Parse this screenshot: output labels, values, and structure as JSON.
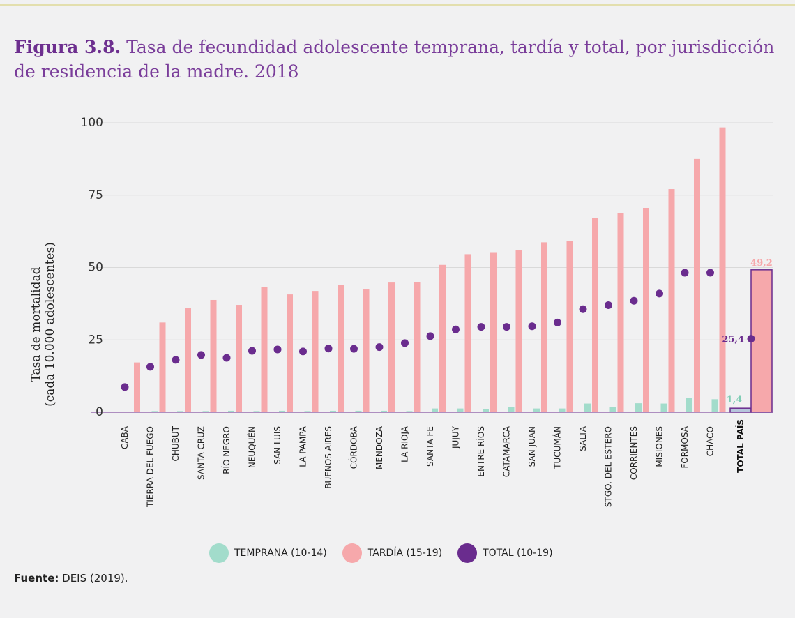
{
  "figure": {
    "number": "Figura 3.8.",
    "title": "Tasa de fecundidad adolescente temprana, tardía y total, por jurisdicción de residencia de la madre. 2018"
  },
  "source": {
    "label": "Fuente:",
    "text": "DEIS (2019)."
  },
  "colors": {
    "temprana": "#a2dccb",
    "tardia": "#f6a8ab",
    "total": "#6a2c8e",
    "grid": "#d9d9d9",
    "background": "#f1f1f2"
  },
  "chart_data": {
    "type": "bar",
    "ylabel_lines": [
      "Tasa de mortalidad",
      "(cada 10.000 adolescentes)"
    ],
    "ylim": [
      0,
      100
    ],
    "yticks": [
      0,
      25,
      50,
      75,
      100
    ],
    "grid": true,
    "legend_position": "bottom",
    "categories": [
      "CABA",
      "TIERRA DEL FUEGO",
      "CHUBUT",
      "SANTA CRUZ",
      "RÍO NEGRO",
      "NEUQUÉN",
      "SAN LUIS",
      "LA PAMPA",
      "BUENOS AIRES",
      "CÓRDOBA",
      "MENDOZA",
      "LA RIOJA",
      "SANTA FE",
      "JUJUY",
      "ENTRE RÍOS",
      "CATAMARCA",
      "SAN JUAN",
      "TUCUMÁN",
      "SALTA",
      "STGO. DEL ESTERO",
      "CORRIENTES",
      "MISIONES",
      "FORMOSA",
      "CHACO",
      "TOTAL PAÍS"
    ],
    "series": [
      {
        "name": "TEMPRANA (10-14)",
        "kind": "bar",
        "values": [
          0.2,
          0.4,
          0.4,
          0.4,
          0.5,
          0.4,
          0.5,
          0.4,
          0.5,
          0.5,
          0.5,
          0.4,
          1.3,
          1.3,
          1.2,
          1.8,
          1.3,
          1.3,
          3.0,
          1.9,
          3.1,
          3.0,
          4.9,
          4.5,
          1.4
        ]
      },
      {
        "name": "TARDÍA (15-19)",
        "kind": "bar",
        "values": [
          17.2,
          31.0,
          35.9,
          38.8,
          37.1,
          43.2,
          40.7,
          41.9,
          43.9,
          42.4,
          44.8,
          44.9,
          50.9,
          54.6,
          55.3,
          55.9,
          58.7,
          59.1,
          67.0,
          68.8,
          70.6,
          77.1,
          87.5,
          98.4,
          49.2
        ]
      },
      {
        "name": "TOTAL (10-19)",
        "kind": "dot",
        "values": [
          8.7,
          15.7,
          18.1,
          19.8,
          18.8,
          21.2,
          21.7,
          21.0,
          22.0,
          21.9,
          22.5,
          23.9,
          26.3,
          28.6,
          29.5,
          29.5,
          29.7,
          31.0,
          35.6,
          37.0,
          38.5,
          41.0,
          48.2,
          48.2,
          25.4
        ]
      }
    ],
    "highlight": {
      "category": "TOTAL PAÍS",
      "labels": {
        "temprana": "1,4",
        "tardia": "49,2",
        "total": "25,4"
      }
    },
    "tick_labels": [
      "0",
      "25",
      "50",
      "75",
      "100"
    ]
  },
  "legend": [
    {
      "key": "temprana",
      "label": "TEMPRANA (10-14)"
    },
    {
      "key": "tardia",
      "label": "TARDÍA (15-19)"
    },
    {
      "key": "total",
      "label": "TOTAL (10-19)"
    }
  ]
}
